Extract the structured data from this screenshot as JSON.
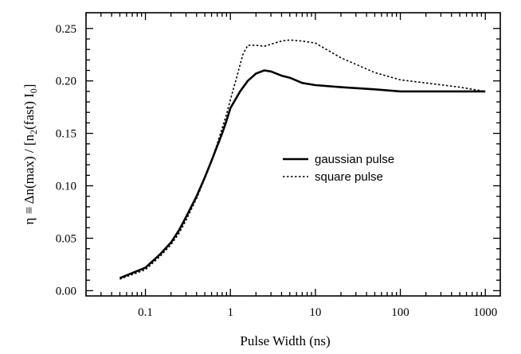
{
  "chart_data": {
    "type": "line",
    "xlabel": "Pulse Width (ns)",
    "ylabel_parts": [
      "η ≡ Δn(max) / [n",
      "2",
      "(fast) I",
      "0",
      "]"
    ],
    "xscale": "log",
    "xlim": [
      0.02,
      1500
    ],
    "ylim": [
      -0.005,
      0.265
    ],
    "xticks": [
      0.1,
      1,
      10,
      100,
      1000
    ],
    "xtick_labels": [
      "0.1",
      "1",
      "10",
      "100",
      "1000"
    ],
    "yticks": [
      0.0,
      0.05,
      0.1,
      0.15,
      0.2,
      0.25
    ],
    "ytick_labels": [
      "0.00",
      "0.05",
      "0.10",
      "0.15",
      "0.20",
      "0.25"
    ],
    "grid": false,
    "legend_position": "right-middle",
    "series": [
      {
        "name": "gaussian pulse",
        "style": "solid",
        "color": "#000000",
        "x": [
          0.05,
          0.1,
          0.15,
          0.2,
          0.25,
          0.3,
          0.4,
          0.5,
          0.6,
          0.7,
          0.8,
          0.9,
          1.0,
          1.3,
          1.6,
          2.0,
          2.5,
          3.0,
          4.0,
          5.0,
          7.0,
          10,
          20,
          50,
          100,
          200,
          500,
          1000
        ],
        "y": [
          0.012,
          0.022,
          0.035,
          0.046,
          0.058,
          0.07,
          0.09,
          0.108,
          0.124,
          0.138,
          0.15,
          0.162,
          0.174,
          0.19,
          0.2,
          0.207,
          0.21,
          0.209,
          0.205,
          0.203,
          0.198,
          0.196,
          0.194,
          0.192,
          0.19,
          0.19,
          0.19,
          0.19
        ]
      },
      {
        "name": "square pulse",
        "style": "dotted",
        "color": "#000000",
        "x": [
          0.05,
          0.1,
          0.15,
          0.2,
          0.25,
          0.3,
          0.4,
          0.5,
          0.6,
          0.7,
          0.8,
          0.9,
          1.0,
          1.2,
          1.4,
          1.6,
          2.0,
          2.5,
          3.0,
          4.0,
          5.0,
          7.0,
          10,
          20,
          50,
          100,
          200,
          500,
          1000
        ],
        "y": [
          0.011,
          0.02,
          0.033,
          0.044,
          0.055,
          0.067,
          0.088,
          0.107,
          0.124,
          0.14,
          0.155,
          0.168,
          0.182,
          0.205,
          0.225,
          0.234,
          0.234,
          0.233,
          0.235,
          0.238,
          0.239,
          0.238,
          0.236,
          0.222,
          0.208,
          0.201,
          0.198,
          0.194,
          0.19
        ]
      }
    ]
  }
}
